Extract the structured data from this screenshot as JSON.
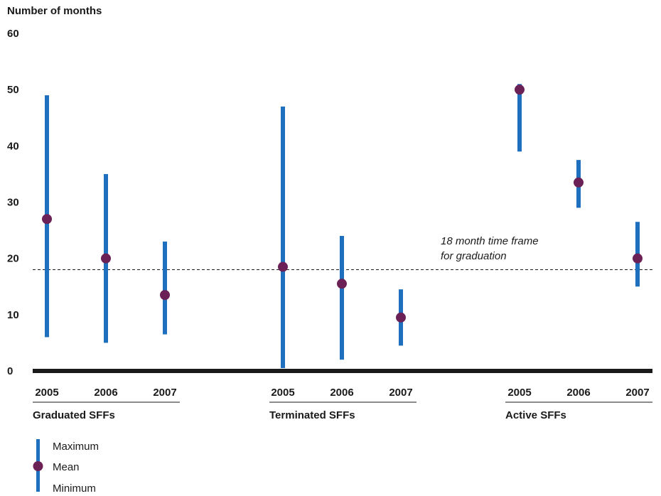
{
  "chart_data": {
    "type": "range",
    "ylabel": "Number of months",
    "ylim": [
      0,
      60
    ],
    "yticks": [
      0,
      10,
      20,
      30,
      40,
      50,
      60
    ],
    "groups": [
      {
        "label": "Graduated SFFs",
        "items": [
          {
            "year": "2005",
            "min": 6,
            "mean": 27,
            "max": 49
          },
          {
            "year": "2006",
            "min": 5,
            "mean": 20,
            "max": 35
          },
          {
            "year": "2007",
            "min": 6.5,
            "mean": 13.5,
            "max": 23
          }
        ]
      },
      {
        "label": "Terminated SFFs",
        "items": [
          {
            "year": "2005",
            "min": 0.5,
            "mean": 18.5,
            "max": 47
          },
          {
            "year": "2006",
            "min": 2,
            "mean": 15.5,
            "max": 24
          },
          {
            "year": "2007",
            "min": 4.5,
            "mean": 9.5,
            "max": 14.5
          }
        ]
      },
      {
        "label": "Active SFFs",
        "items": [
          {
            "year": "2005",
            "min": 39,
            "mean": 50,
            "max": 51
          },
          {
            "year": "2006",
            "min": 29,
            "mean": 33.5,
            "max": 37.5
          },
          {
            "year": "2007",
            "min": 15,
            "mean": 20,
            "max": 26.5
          }
        ]
      }
    ],
    "reference_line": {
      "value": 18,
      "label_line1": "18 month time frame",
      "label_line2": "for graduation"
    },
    "legend": {
      "maximum": "Maximum",
      "mean": "Mean",
      "minimum": "Minimum"
    },
    "colors": {
      "range_bar": "#1f6fbf",
      "mean_dot": "#6b2155",
      "axis": "#1a1a1a"
    }
  }
}
